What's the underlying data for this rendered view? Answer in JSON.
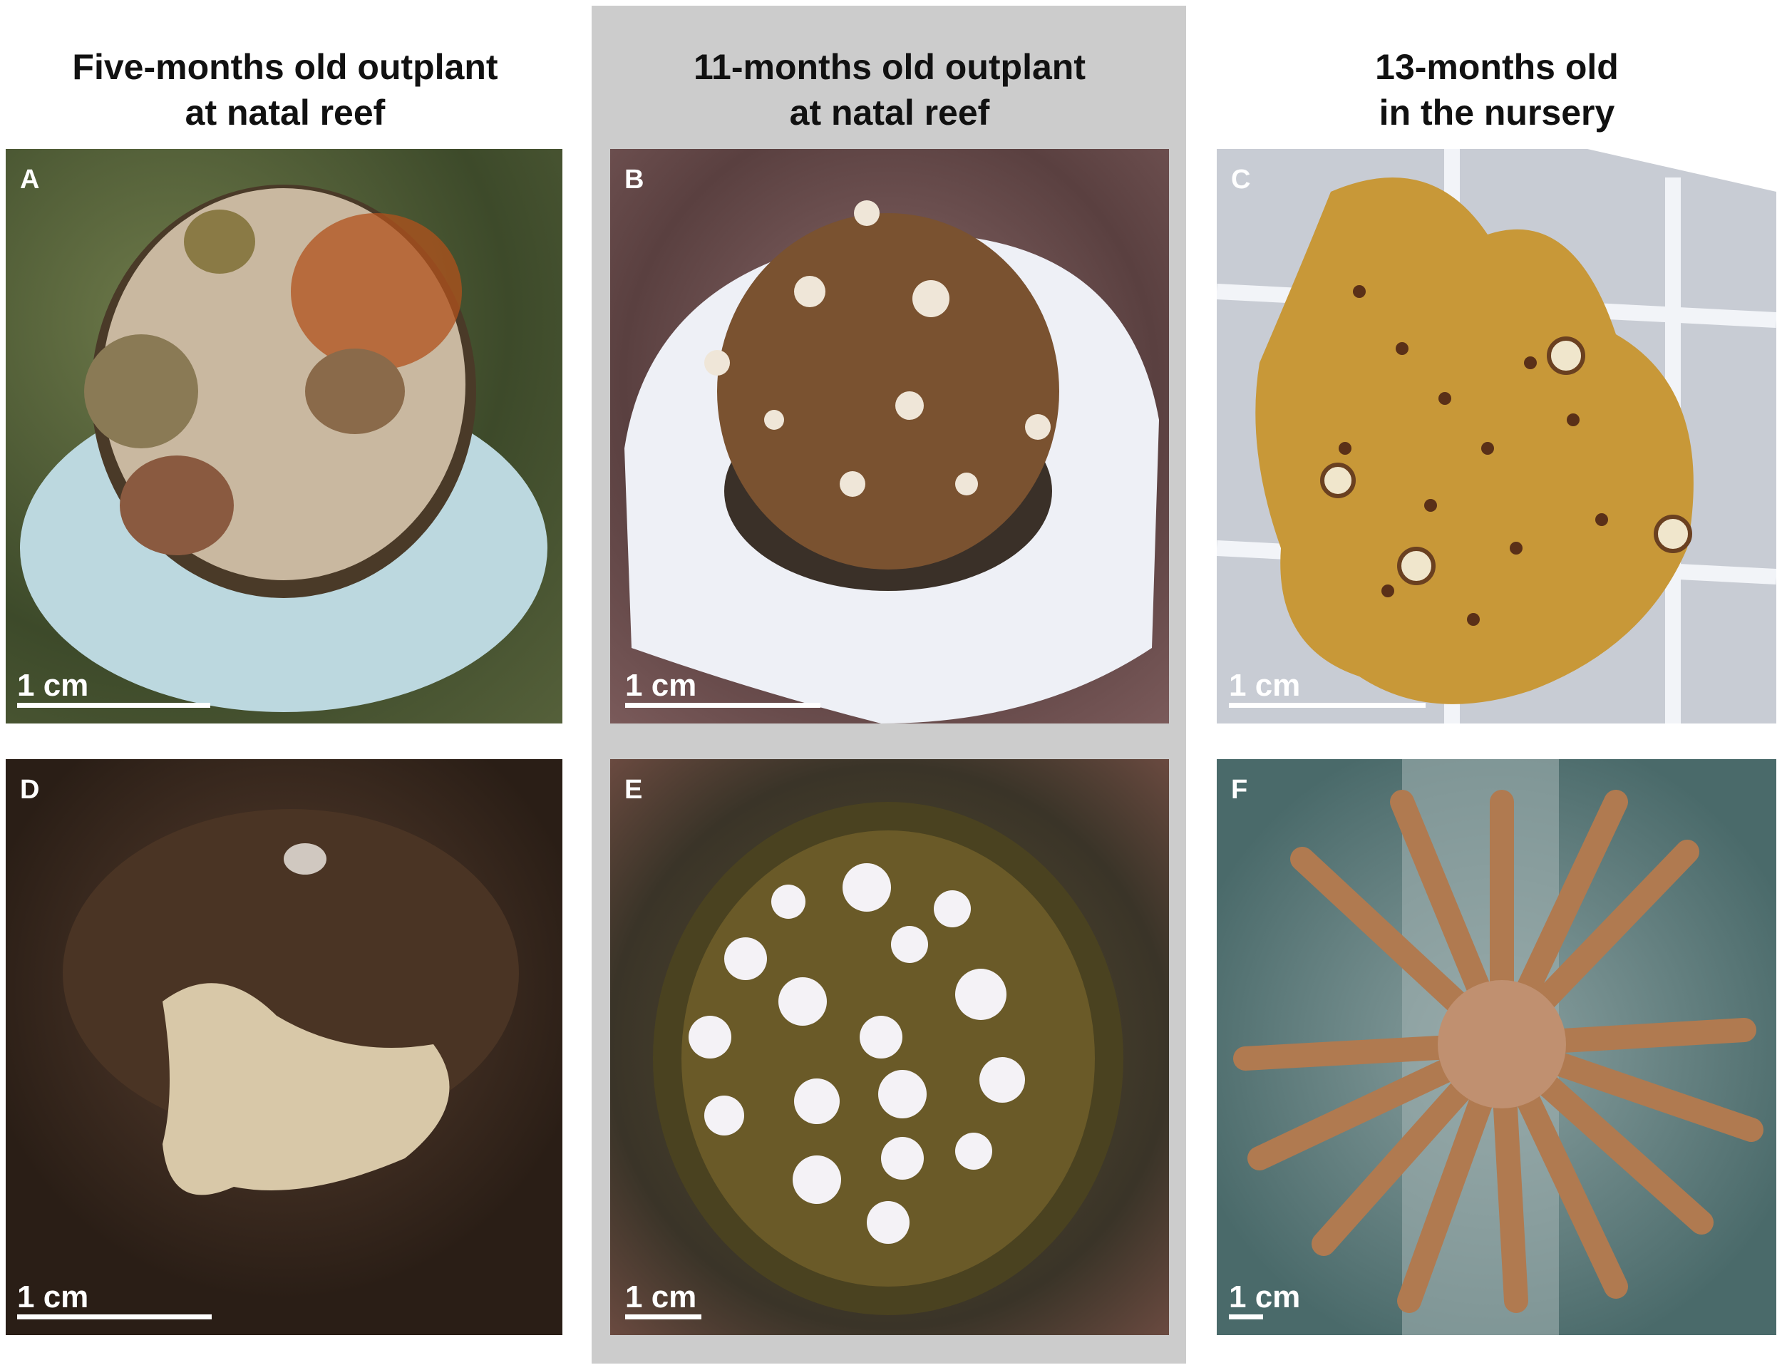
{
  "columns": [
    {
      "title_line1": "Five-months old outplant",
      "title_line2": "at natal reef"
    },
    {
      "title_line1": "11-months old outplant",
      "title_line2": "at natal reef"
    },
    {
      "title_line1": "13-months old",
      "title_line2": "in the nursery"
    }
  ],
  "panels": [
    {
      "label": "A",
      "scale_label": "1 cm"
    },
    {
      "label": "B",
      "scale_label": "1 cm"
    },
    {
      "label": "C",
      "scale_label": "1 cm"
    },
    {
      "label": "D",
      "scale_label": "1 cm"
    },
    {
      "label": "E",
      "scale_label": "1 cm"
    },
    {
      "label": "F",
      "scale_label": "1 cm"
    }
  ],
  "colors": {
    "highlight_column_background": "#cccccc",
    "label_text": "#ffffff"
  }
}
